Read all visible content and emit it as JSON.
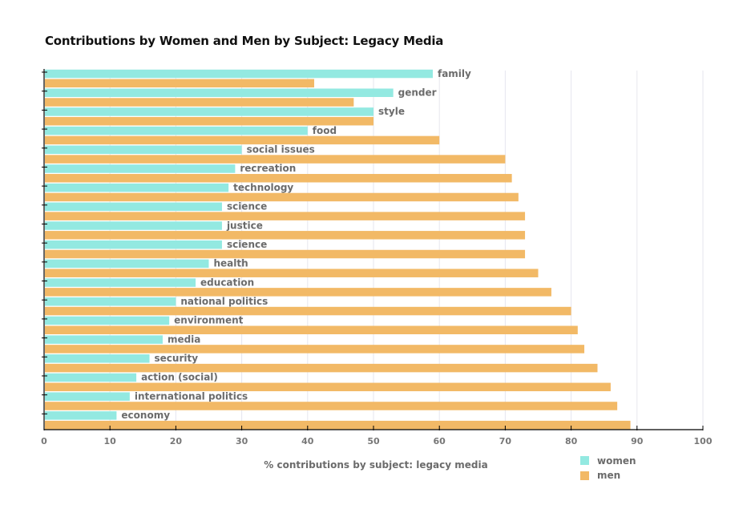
{
  "chart_data": {
    "type": "bar",
    "orientation": "horizontal",
    "title": "Contributions by Women and Men by Subject: Legacy Media",
    "xlabel": "% contributions by subject: legacy media",
    "ylabel": "",
    "xlim": [
      0,
      100
    ],
    "xticks": [
      0,
      10,
      20,
      30,
      40,
      50,
      60,
      70,
      80,
      90,
      100
    ],
    "grid": true,
    "legend_position": "bottom-right",
    "categories": [
      "family",
      "gender",
      "style",
      "food",
      "social issues",
      "recreation",
      "technology",
      "science",
      "justice",
      "science",
      "health",
      "education",
      "national politics",
      "environment",
      "media",
      "security",
      "action (social)",
      "international politics",
      "economy"
    ],
    "series": [
      {
        "name": "women",
        "color": "#93e9e1",
        "values": [
          59,
          53,
          50,
          40,
          30,
          29,
          28,
          27,
          27,
          27,
          25,
          23,
          20,
          19,
          18,
          16,
          14,
          13,
          11
        ]
      },
      {
        "name": "men",
        "color": "#f2b966",
        "values": [
          41,
          47,
          50,
          60,
          70,
          71,
          72,
          73,
          73,
          73,
          75,
          77,
          80,
          81,
          82,
          84,
          86,
          87,
          89
        ]
      }
    ]
  }
}
